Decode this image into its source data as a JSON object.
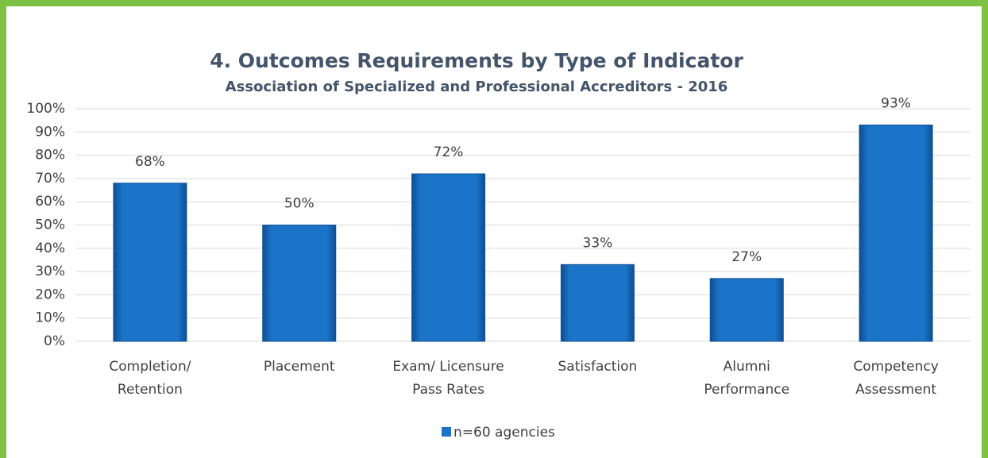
{
  "chart_data": {
    "type": "bar",
    "title": "4. Outcomes Requirements by Type of Indicator",
    "subtitle": "Association of Specialized and Professional Accreditors - 2016",
    "categories": [
      [
        "Completion/",
        "Retention"
      ],
      [
        "Placement"
      ],
      [
        "Exam/ Licensure",
        "Pass Rates"
      ],
      [
        "Satisfaction"
      ],
      [
        "Alumni",
        "Performance"
      ],
      [
        "Competency",
        "Assessment"
      ]
    ],
    "series": [
      {
        "name": "n=60 agencies",
        "color": "#1b74c8",
        "values": [
          68,
          50,
          72,
          33,
          27,
          93
        ],
        "value_labels": [
          "68%",
          "50%",
          "72%",
          "33%",
          "27%",
          "93%"
        ]
      }
    ],
    "ylim": [
      0,
      100
    ],
    "yticks": [
      {
        "value": 0,
        "label": "0%"
      },
      {
        "value": 10,
        "label": "10%"
      },
      {
        "value": 20,
        "label": "20%"
      },
      {
        "value": 30,
        "label": "30%"
      },
      {
        "value": 40,
        "label": "40%"
      },
      {
        "value": 50,
        "label": "50%"
      },
      {
        "value": 60,
        "label": "60%"
      },
      {
        "value": 70,
        "label": "70%"
      },
      {
        "value": 80,
        "label": "80%"
      },
      {
        "value": 90,
        "label": "90%"
      },
      {
        "value": 100,
        "label": "100%"
      }
    ],
    "grid": true,
    "legend": "bottom"
  }
}
